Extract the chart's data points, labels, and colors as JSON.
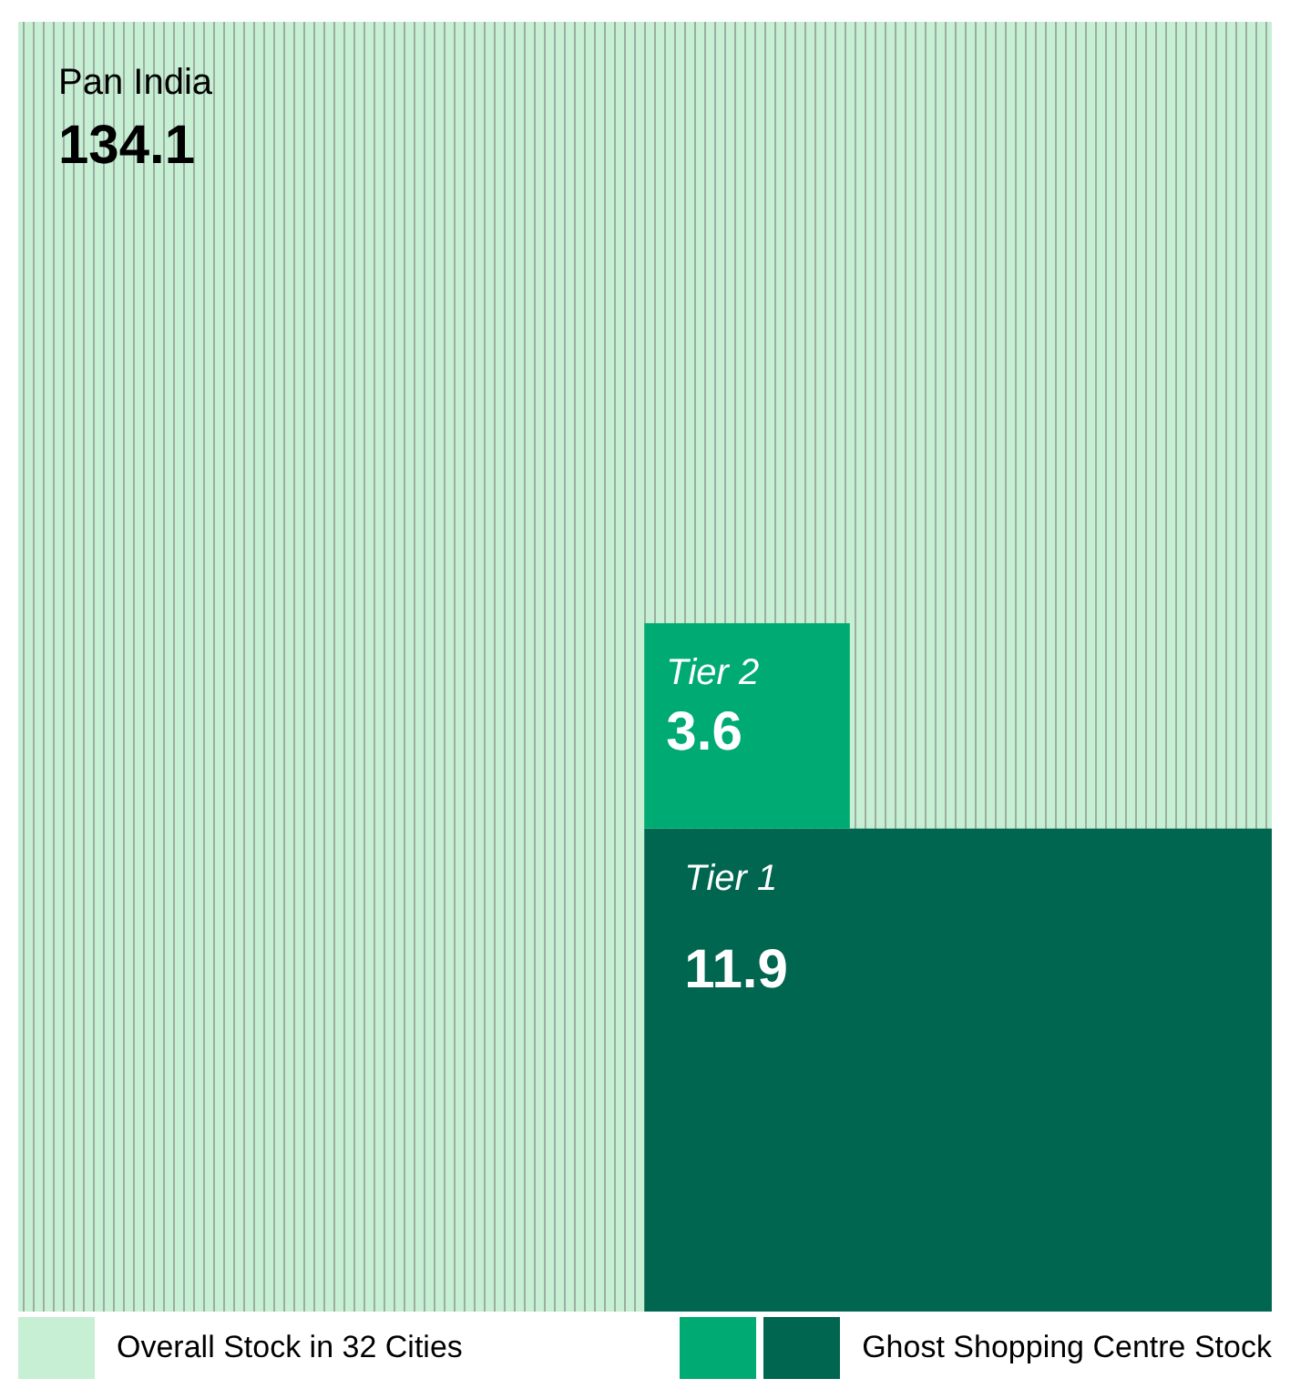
{
  "chart_data": {
    "type": "other",
    "categories": [
      "Pan India",
      "Tier 2",
      "Tier 1"
    ],
    "series": [
      {
        "name": "Overall Stock in 32 Cities",
        "color": "#c6efd3",
        "values": [
          134.1,
          null,
          null
        ]
      },
      {
        "name": "Ghost Shopping Centre Stock",
        "colors": [
          null,
          "#00ab73",
          "#006650"
        ],
        "values": [
          null,
          3.6,
          11.9
        ]
      }
    ],
    "data_labels": true,
    "legend": "bottom"
  }
}
